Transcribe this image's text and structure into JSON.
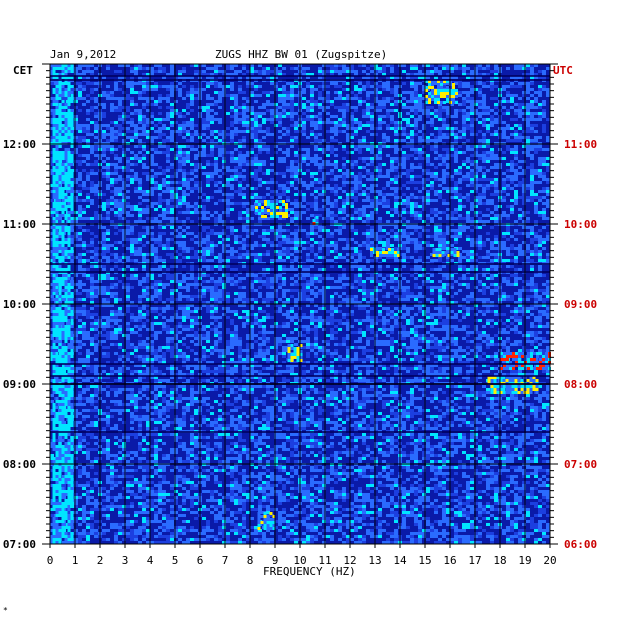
{
  "header": {
    "date": "Jan 9,2012",
    "station": "ZUGS HHZ BW 01 (Zugspitze)"
  },
  "corner_mark": "*",
  "chart_data": {
    "type": "heatmap",
    "title": "ZUGS HHZ BW 01 (Zugspitze)",
    "subtitle": "Jan 9,2012",
    "xlabel": "FREQUENCY (HZ)",
    "xlim": [
      0,
      20
    ],
    "x_ticks": [
      "0",
      "1",
      "2",
      "3",
      "4",
      "5",
      "6",
      "7",
      "8",
      "9",
      "10",
      "11",
      "12",
      "13",
      "14",
      "15",
      "16",
      "17",
      "18",
      "19",
      "20"
    ],
    "left_axis": {
      "label": "CET",
      "ticks": [
        {
          "label": "12:00",
          "hours_before_end": 5
        },
        {
          "label": "11:00",
          "hours_before_end": 4
        },
        {
          "label": "10:00",
          "hours_before_end": 3
        },
        {
          "label": "09:00",
          "hours_before_end": 2
        },
        {
          "label": "08:00",
          "hours_before_end": 1
        },
        {
          "label": "07:00",
          "hours_before_end": 0
        }
      ]
    },
    "right_axis": {
      "label": "UTC",
      "ticks": [
        {
          "label": "11:00",
          "hours_before_end": 5
        },
        {
          "label": "10:00",
          "hours_before_end": 4
        },
        {
          "label": "09:00",
          "hours_before_end": 3
        },
        {
          "label": "08:00",
          "hours_before_end": 2
        },
        {
          "label": "07:00",
          "hours_before_end": 1
        },
        {
          "label": "06:00",
          "hours_before_end": 0
        }
      ]
    },
    "time_span_hours": 6,
    "minor_ticks_per_hour": 12,
    "colors": {
      "background": "#0a1aa8",
      "low": "#0a1aa8",
      "mid": "#2a6bff",
      "high": "#00e5ff",
      "peak": "#ffee00",
      "max": "#ff2200",
      "axis_left": "#000000",
      "axis_right": "#cc0000",
      "grid": "#000000"
    },
    "hotspots": [
      {
        "freq": [
          0.1,
          0.9
        ],
        "hours_before_end": [
          0.0,
          6.0
        ],
        "level": "high"
      },
      {
        "freq": [
          15.0,
          16.3
        ],
        "hours_before_end": [
          5.5,
          5.8
        ],
        "level": "peak"
      },
      {
        "freq": [
          18.0,
          20.0
        ],
        "hours_before_end": [
          2.2,
          2.4
        ],
        "level": "max"
      },
      {
        "freq": [
          17.5,
          19.5
        ],
        "hours_before_end": [
          1.9,
          2.1
        ],
        "level": "peak"
      },
      {
        "freq": [
          8.2,
          9.5
        ],
        "hours_before_end": [
          4.1,
          4.3
        ],
        "level": "peak"
      },
      {
        "freq": [
          9.5,
          10.0
        ],
        "hours_before_end": [
          2.3,
          2.5
        ],
        "level": "peak"
      },
      {
        "freq": [
          8.3,
          9.0
        ],
        "hours_before_end": [
          0.2,
          0.4
        ],
        "level": "peak"
      },
      {
        "freq": [
          10.5,
          10.7
        ],
        "hours_before_end": [
          4.0,
          4.1
        ],
        "level": "max"
      },
      {
        "freq": [
          12.8,
          14.0
        ],
        "hours_before_end": [
          3.6,
          3.7
        ],
        "level": "peak"
      },
      {
        "freq": [
          15.3,
          16.3
        ],
        "hours_before_end": [
          3.6,
          3.7
        ],
        "level": "peak"
      }
    ],
    "dark_bands_hours_before_end": [
      2.0,
      2.1,
      2.25,
      1.4,
      3.4,
      3.5,
      5.8,
      5.85
    ]
  }
}
